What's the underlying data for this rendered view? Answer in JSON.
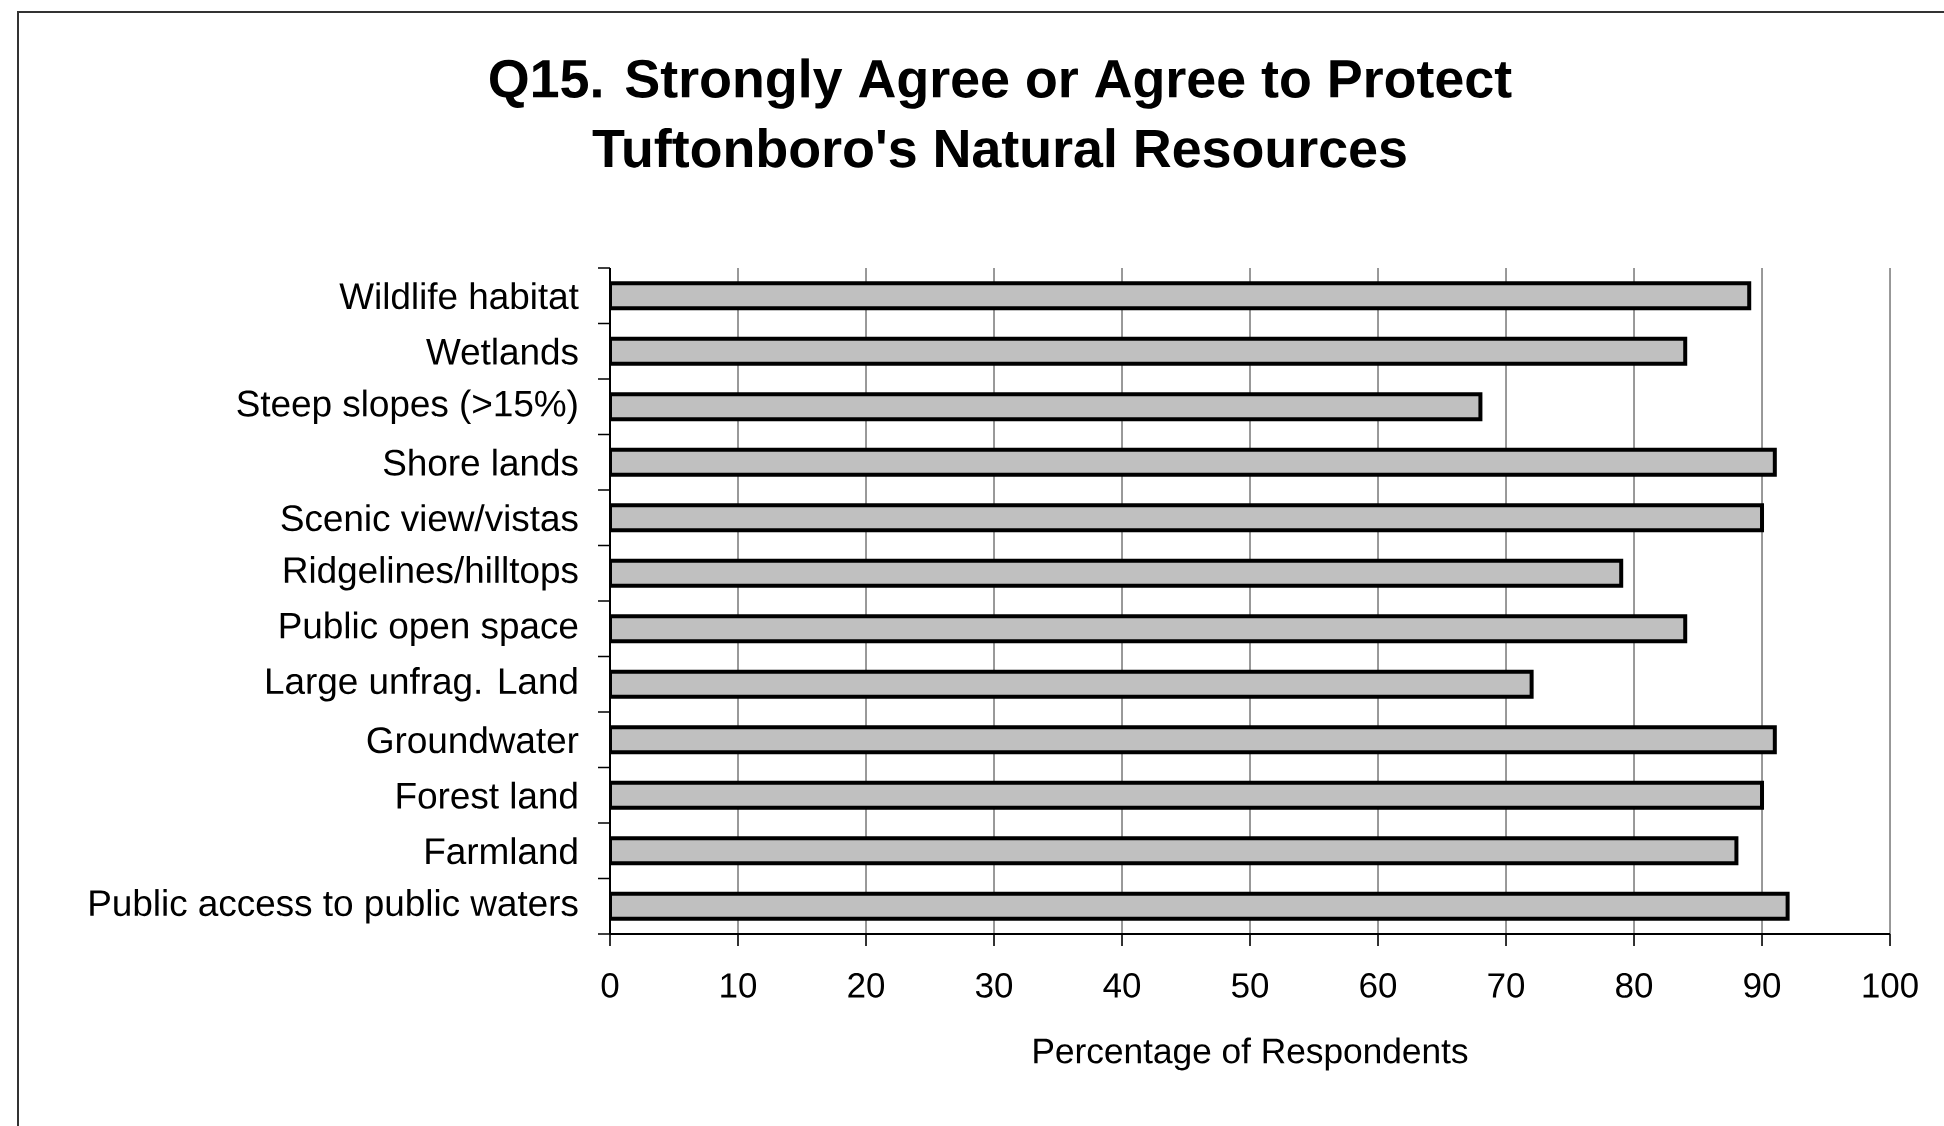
{
  "chart_data": {
    "type": "bar",
    "orientation": "horizontal",
    "title": "Q15.  Strongly Agree or Agree to Protect Tuftonboro's Natural Resources",
    "xlabel": "Percentage of Respondents",
    "categories": [
      "Wildlife habitat",
      "Wetlands",
      "Steep slopes (>15%)",
      "Shore lands",
      "Scenic view/vistas",
      "Ridgelines/hilltops",
      "Public open space",
      "Large unfrag. Land",
      "Groundwater",
      "Forest land",
      "Farmland",
      "Public access to public waters"
    ],
    "values": [
      89,
      84,
      68,
      91,
      90,
      79,
      84,
      72,
      91,
      90,
      88,
      92
    ],
    "color": "#c0c0c0",
    "xlim": [
      0,
      100
    ],
    "xticks": [
      0,
      10,
      20,
      30,
      40,
      50,
      60,
      70,
      80,
      90,
      100
    ],
    "grid": "x"
  }
}
